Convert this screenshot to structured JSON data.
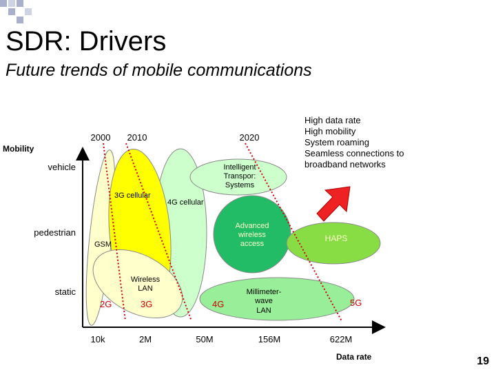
{
  "slide": {
    "title": "SDR: Drivers",
    "subtitle": "Future trends of mobile communications",
    "page_number": "19"
  },
  "diagram": {
    "axes": {
      "y_label": "Mobility",
      "x_label": "Data rate",
      "y_ticks": [
        "vehicle",
        "pedestrian",
        "static"
      ],
      "x_ticks": [
        "10k",
        "2M",
        "50M",
        "156M",
        "622M"
      ]
    },
    "years": [
      "2000",
      "2010",
      "2020"
    ],
    "regions": {
      "gsm": "GSM",
      "cellular_3g": "3G cellular",
      "cellular_4g": "4G cellular",
      "wireless_lan": [
        "Wireless",
        "LAN"
      ],
      "its": [
        "Intelligent",
        "Transpor:",
        "Systems"
      ],
      "advanced": [
        "Advanced",
        "wireless",
        "access"
      ],
      "haps": "HAPS",
      "mmwave": [
        "Millimeter-",
        "wave",
        "LAN"
      ]
    },
    "generations": [
      "2G",
      "3G",
      "4G",
      "5G"
    ],
    "future_notes": [
      "High data rate",
      "High mobility",
      "System roaming",
      "Seamless connections to",
      "broadband networks"
    ],
    "colors": {
      "cellular_3g": "#ffff00",
      "light_green": "#ccffcc",
      "mid_green": "#99ee99",
      "dark_green": "#22bb66",
      "haps": "#88dd44",
      "wlan": "#ffffcc",
      "generation_text": "#cc0000",
      "arrow": "#ee2222"
    }
  }
}
